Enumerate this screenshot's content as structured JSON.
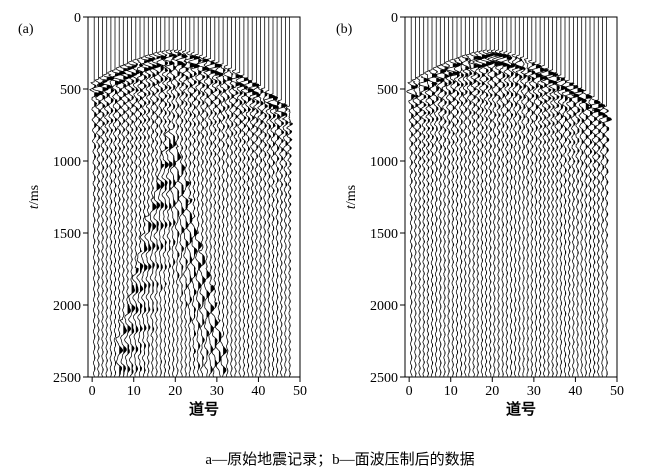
{
  "figure": {
    "caption": "a—原始地震记录；b—面波压制后的数据"
  },
  "chart_data": [
    {
      "type": "seismic-wiggle",
      "panel_label": "(a)",
      "title": "原始地震记录",
      "xlabel": "道号",
      "ylabel_italic": "t",
      "ylabel_rest": "/ms",
      "x_ticks": [
        0,
        10,
        20,
        30,
        40,
        50
      ],
      "y_ticks": [
        0,
        500,
        1000,
        1500,
        2000,
        2500
      ],
      "xlim": [
        -1,
        50
      ],
      "ylim": [
        0,
        2500
      ],
      "y_inverted": true,
      "traces": 48,
      "first_arrival": {
        "apex_trace": 20,
        "apex_time_ms": 250,
        "left_edge_time_ms": 470,
        "right_edge_time_ms": 650
      },
      "surface_wave": {
        "present": true,
        "apex_trace": 19,
        "apex_time_ms": 780
      },
      "grid": false
    },
    {
      "type": "seismic-wiggle",
      "panel_label": "(b)",
      "title": "面波压制后的数据",
      "xlabel": "道号",
      "ylabel_italic": "t",
      "ylabel_rest": "/ms",
      "x_ticks": [
        0,
        10,
        20,
        30,
        40,
        50
      ],
      "y_ticks": [
        0,
        500,
        1000,
        1500,
        2000,
        2500
      ],
      "xlim": [
        -1,
        50
      ],
      "ylim": [
        0,
        2500
      ],
      "y_inverted": true,
      "traces": 48,
      "first_arrival": {
        "apex_trace": 20,
        "apex_time_ms": 250,
        "left_edge_time_ms": 470,
        "right_edge_time_ms": 650
      },
      "surface_wave": {
        "present": false
      },
      "grid": false
    }
  ]
}
